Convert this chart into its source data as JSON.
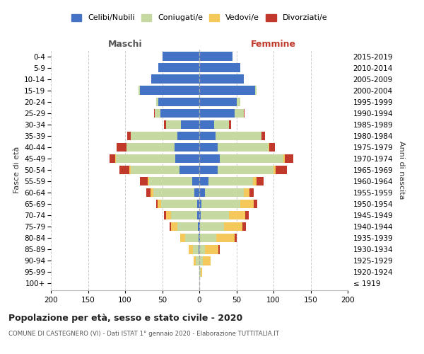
{
  "age_groups": [
    "100+",
    "95-99",
    "90-94",
    "85-89",
    "80-84",
    "75-79",
    "70-74",
    "65-69",
    "60-64",
    "55-59",
    "50-54",
    "45-49",
    "40-44",
    "35-39",
    "30-34",
    "25-29",
    "20-24",
    "15-19",
    "10-14",
    "5-9",
    "0-4"
  ],
  "birth_years": [
    "≤ 1919",
    "1920-1924",
    "1925-1929",
    "1930-1934",
    "1935-1939",
    "1940-1944",
    "1945-1949",
    "1950-1954",
    "1955-1959",
    "1960-1964",
    "1965-1969",
    "1970-1974",
    "1975-1979",
    "1980-1984",
    "1985-1989",
    "1990-1994",
    "1995-1999",
    "2000-2004",
    "2005-2009",
    "2010-2014",
    "2015-2019"
  ],
  "males": {
    "celibi": [
      0,
      0,
      0,
      1,
      1,
      2,
      3,
      3,
      7,
      10,
      27,
      32,
      33,
      30,
      25,
      52,
      55,
      80,
      65,
      55,
      50
    ],
    "coniugati": [
      0,
      0,
      5,
      8,
      18,
      28,
      35,
      48,
      55,
      58,
      65,
      80,
      65,
      62,
      20,
      8,
      3,
      2,
      0,
      0,
      0
    ],
    "vedovi": [
      0,
      0,
      3,
      5,
      7,
      8,
      7,
      5,
      4,
      2,
      2,
      1,
      0,
      0,
      0,
      0,
      0,
      0,
      0,
      0,
      0
    ],
    "divorziati": [
      0,
      0,
      0,
      0,
      0,
      2,
      3,
      2,
      5,
      10,
      14,
      8,
      13,
      5,
      3,
      1,
      0,
      0,
      0,
      0,
      0
    ]
  },
  "females": {
    "nubili": [
      0,
      0,
      0,
      0,
      1,
      1,
      2,
      3,
      8,
      12,
      25,
      28,
      25,
      22,
      20,
      48,
      50,
      75,
      60,
      55,
      45
    ],
    "coniugate": [
      0,
      2,
      5,
      8,
      22,
      32,
      38,
      52,
      52,
      60,
      75,
      85,
      68,
      62,
      20,
      12,
      5,
      2,
      0,
      0,
      0
    ],
    "vedove": [
      0,
      2,
      10,
      18,
      25,
      25,
      22,
      18,
      8,
      5,
      3,
      2,
      1,
      0,
      0,
      0,
      0,
      0,
      0,
      0,
      0
    ],
    "divorziate": [
      0,
      0,
      0,
      2,
      2,
      5,
      5,
      5,
      5,
      10,
      15,
      12,
      8,
      5,
      3,
      1,
      0,
      0,
      0,
      0,
      0
    ]
  },
  "colors": {
    "celibi": "#4472c4",
    "coniugati": "#c5d9a0",
    "vedovi": "#f5c85c",
    "divorziati": "#c0392b"
  },
  "xlim": 200,
  "title": "Popolazione per età, sesso e stato civile - 2020",
  "subtitle": "COMUNE DI CASTEGNERO (VI) - Dati ISTAT 1° gennaio 2020 - Elaborazione TUTTITALIA.IT",
  "ylabel_left": "Fasce di età",
  "ylabel_right": "Anni di nascita",
  "xlabel_maschi": "Maschi",
  "xlabel_femmine": "Femmine",
  "legend_labels": [
    "Celibi/Nubili",
    "Coniugati/e",
    "Vedovi/e",
    "Divorziati/e"
  ],
  "background_color": "#ffffff",
  "grid_color": "#cccccc"
}
